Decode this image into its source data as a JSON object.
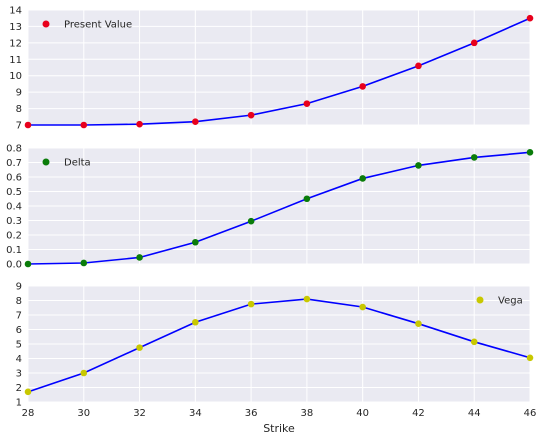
{
  "chart_data": [
    {
      "type": "line",
      "x": [
        28,
        30,
        32,
        34,
        36,
        38,
        40,
        42,
        44,
        46
      ],
      "xlim": [
        28,
        46
      ],
      "xticks": [
        "28",
        "30",
        "32",
        "34",
        "36",
        "38",
        "40",
        "42",
        "44",
        "46"
      ],
      "xticks_visible": false,
      "ylim": [
        7,
        14
      ],
      "yticks": [
        "7",
        "8",
        "9",
        "10",
        "11",
        "12",
        "13",
        "14"
      ],
      "grid": true,
      "legend_position": "top-left",
      "series": [
        {
          "name": "Present Value",
          "style": "markers",
          "marker_color": "#e8001c",
          "values": [
            7.0,
            7.0,
            7.05,
            7.2,
            7.6,
            8.3,
            9.35,
            10.6,
            12.0,
            13.5
          ]
        },
        {
          "style": "line",
          "line_color": "#0000ff",
          "values": [
            7.0,
            7.0,
            7.05,
            7.2,
            7.6,
            8.3,
            9.35,
            10.6,
            12.0,
            13.5
          ]
        }
      ]
    },
    {
      "type": "line",
      "x": [
        28,
        30,
        32,
        34,
        36,
        38,
        40,
        42,
        44,
        46
      ],
      "xlim": [
        28,
        46
      ],
      "xticks": [
        "28",
        "30",
        "32",
        "34",
        "36",
        "38",
        "40",
        "42",
        "44",
        "46"
      ],
      "xticks_visible": false,
      "ylim": [
        0.0,
        0.8
      ],
      "yticks": [
        "0.0",
        "0.1",
        "0.2",
        "0.3",
        "0.4",
        "0.5",
        "0.6",
        "0.7",
        "0.8"
      ],
      "grid": true,
      "legend_position": "top-left",
      "series": [
        {
          "name": "Delta",
          "style": "markers",
          "marker_color": "#0a7c0a",
          "values": [
            0.0,
            0.007,
            0.045,
            0.15,
            0.295,
            0.45,
            0.59,
            0.68,
            0.735,
            0.77
          ]
        },
        {
          "style": "line",
          "line_color": "#0000ff",
          "values": [
            0.0,
            0.007,
            0.045,
            0.15,
            0.295,
            0.45,
            0.59,
            0.68,
            0.735,
            0.77
          ]
        }
      ]
    },
    {
      "type": "line",
      "x": [
        28,
        30,
        32,
        34,
        36,
        38,
        40,
        42,
        44,
        46
      ],
      "xlim": [
        28,
        46
      ],
      "xticks": [
        "28",
        "30",
        "32",
        "34",
        "36",
        "38",
        "40",
        "42",
        "44",
        "46"
      ],
      "xticks_visible": true,
      "xlabel": "Strike",
      "ylim": [
        1,
        9
      ],
      "yticks": [
        "1",
        "2",
        "3",
        "4",
        "5",
        "6",
        "7",
        "8",
        "9"
      ],
      "grid": true,
      "legend_position": "top-right",
      "series": [
        {
          "name": "Vega",
          "style": "markers",
          "marker_color": "#c8c800",
          "values": [
            1.7,
            3.0,
            4.75,
            6.5,
            7.75,
            8.1,
            7.55,
            6.4,
            5.15,
            4.05
          ]
        },
        {
          "style": "line",
          "line_color": "#0000ff",
          "values": [
            1.7,
            3.0,
            4.75,
            6.5,
            7.75,
            8.1,
            7.55,
            6.4,
            5.15,
            4.05
          ]
        }
      ]
    }
  ]
}
